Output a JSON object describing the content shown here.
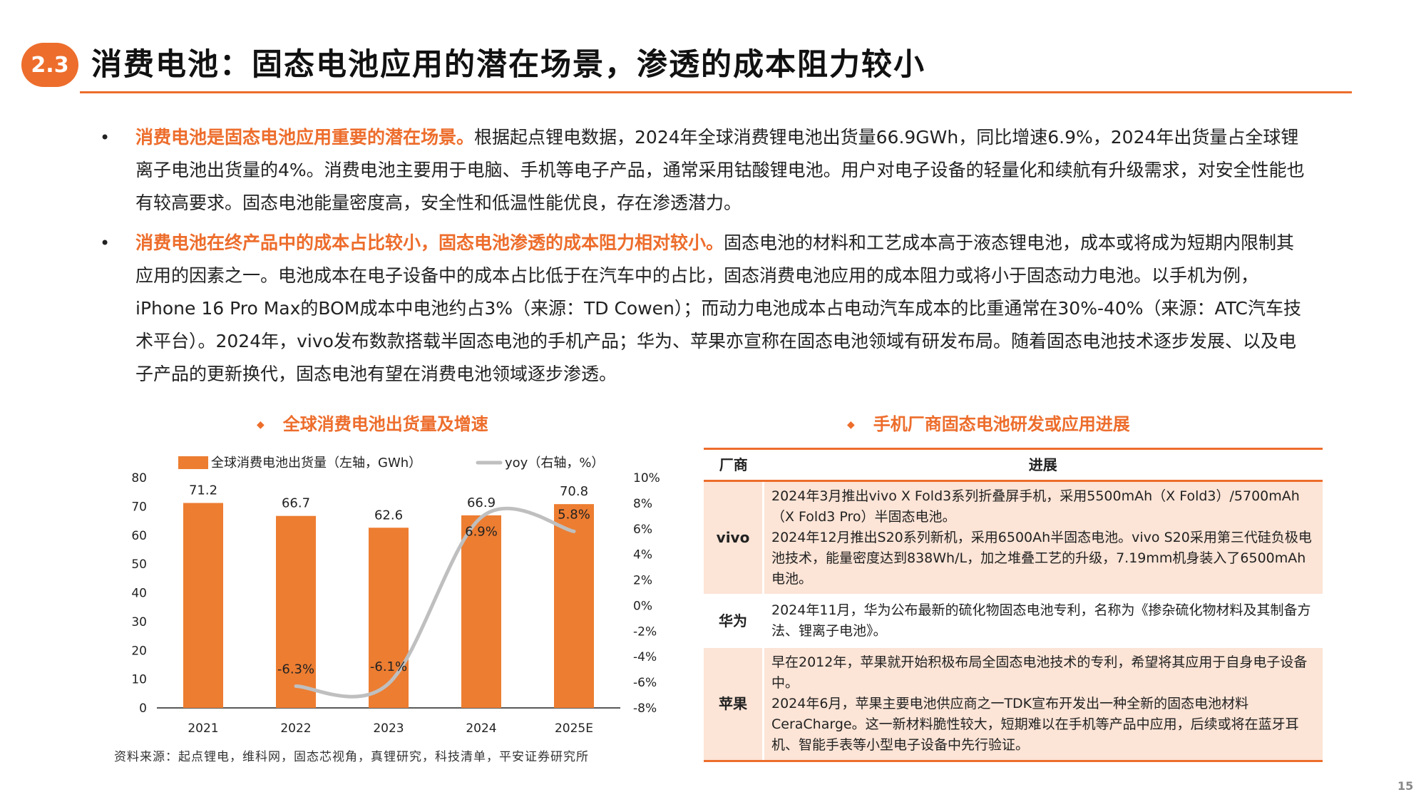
{
  "header": {
    "section_number": "2.3",
    "title": "消费电池：固态电池应用的潜在场景，渗透的成本阻力较小"
  },
  "bullets": [
    {
      "highlight": "消费电池是固态电池应用重要的潜在场景。",
      "text": "根据起点锂电数据，2024年全球消费锂电池出货量66.9GWh，同比增速6.9%，2024年出货量占全球锂离子电池出货量的4%。消费电池主要用于电脑、手机等电子产品，通常采用钴酸锂电池。用户对电子设备的轻量化和续航有升级需求，对安全性能也有较高要求。固态电池能量密度高，安全性和低温性能优良，存在渗透潜力。"
    },
    {
      "highlight": "消费电池在终产品中的成本占比较小，固态电池渗透的成本阻力相对较小。",
      "text": "固态电池的材料和工艺成本高于液态锂电池，成本或将成为短期内限制其应用的因素之一。电池成本在电子设备中的成本占比低于在汽车中的占比，固态消费电池应用的成本阻力或将小于固态动力电池。以手机为例，iPhone 16 Pro Max的BOM成本中电池约占3%（来源：TD Cowen）；而动力电池成本占电动汽车成本的比重通常在30%-40%（来源：ATC汽车技术平台）。2024年，vivo发布数款搭载半固态电池的手机产品；华为、苹果亦宣称在固态电池领域有研发布局。随着固态电池技术逐步发展、以及电子产品的更新换代，固态电池有望在消费电池领域逐步渗透。"
    }
  ],
  "chart_section": {
    "marker": "◆",
    "title": "全球消费电池出货量及增速"
  },
  "table_section": {
    "marker": "◆",
    "title": "手机厂商固态电池研发或应用进展"
  },
  "chart_data": {
    "type": "bar",
    "categories": [
      "2021",
      "2022",
      "2023",
      "2024",
      "2025E"
    ],
    "series": [
      {
        "name": "全球消费电池出货量（左轴，GWh）",
        "type": "bar",
        "axis": "left",
        "color": "#ED7D31",
        "values": [
          71.2,
          66.7,
          62.6,
          66.9,
          70.8
        ],
        "labels": [
          "71.2",
          "66.7",
          "62.6",
          "66.9",
          "70.8"
        ]
      },
      {
        "name": "yoy（右轴，%）",
        "type": "line",
        "axis": "right",
        "color": "#BFBFBF",
        "values": [
          null,
          -6.3,
          -6.1,
          6.9,
          5.8
        ],
        "labels": [
          "",
          "-6.3%",
          "-6.1%",
          "6.9%",
          "5.8%"
        ]
      }
    ],
    "left_axis": {
      "min": 0,
      "max": 80,
      "ticks": [
        "0",
        "10",
        "20",
        "30",
        "40",
        "50",
        "60",
        "70",
        "80"
      ]
    },
    "right_axis": {
      "min": -8,
      "max": 10,
      "ticks": [
        "-8%",
        "-6%",
        "-4%",
        "-2%",
        "0%",
        "2%",
        "4%",
        "6%",
        "8%",
        "10%"
      ]
    },
    "legend_position": "top",
    "grid": false
  },
  "table": {
    "headers": [
      "厂商",
      "进展"
    ],
    "rows": [
      {
        "vendor": "vivo",
        "progress": [
          "2024年3月推出vivo X Fold3系列折叠屏手机，采用5500mAh（X Fold3）/5700mAh（X Fold3 Pro）半固态电池。",
          "2024年12月推出S20系列新机，采用6500Ah半固态电池。vivo S20采用第三代硅负极电池技术，能量密度达到838Wh/L，加之堆叠工艺的升级，7.19mm机身装入了6500mAh电池。"
        ]
      },
      {
        "vendor": "华为",
        "progress": [
          "2024年11月，华为公布最新的硫化物固态电池专利，名称为《掺杂硫化物材料及其制备方法、锂离子电池》。"
        ]
      },
      {
        "vendor": "苹果",
        "progress": [
          "早在2012年，苹果就开始积极布局全固态电池技术的专利，希望将其应用于自身电子设备中。",
          "2024年6月，苹果主要电池供应商之一TDK宣布开发出一种全新的固态电池材料CeraCharge。这一新材料脆性较大，短期难以在手机等产品中应用，后续或将在蓝牙耳机、智能手表等小型电子设备中先行验证。"
        ]
      }
    ]
  },
  "footer": {
    "source": "资料来源：起点锂电，维科网，固态芯视角，真锂研究，科技清单，平安证券研究所",
    "page": "15"
  },
  "colors": {
    "accent": "#ED6D2C",
    "table_shade": "#FCE4D6"
  }
}
